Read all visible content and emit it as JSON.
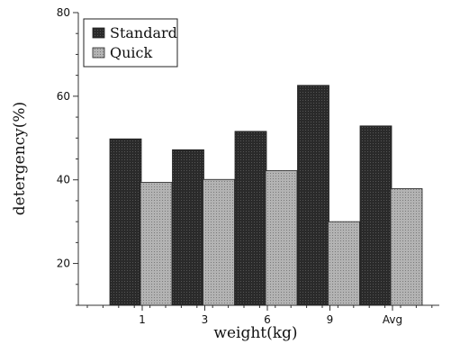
{
  "chart_data": {
    "type": "bar",
    "title": "",
    "xlabel": "weight(kg)",
    "ylabel": "detergency(%)",
    "categories": [
      "1",
      "3",
      "6",
      "9",
      "Avg"
    ],
    "series": [
      {
        "name": "Standard",
        "values": [
          49.8,
          47.2,
          51.6,
          62.6,
          52.9
        ],
        "color": "#1e1e1e"
      },
      {
        "name": "Quick",
        "values": [
          39.4,
          40.1,
          42.2,
          30.0,
          37.9
        ],
        "color": "#a6a6a6"
      }
    ],
    "ylim": [
      10,
      80
    ],
    "yticks": [
      20,
      40,
      60,
      80
    ],
    "grid": false,
    "legend_position": "top-left"
  }
}
